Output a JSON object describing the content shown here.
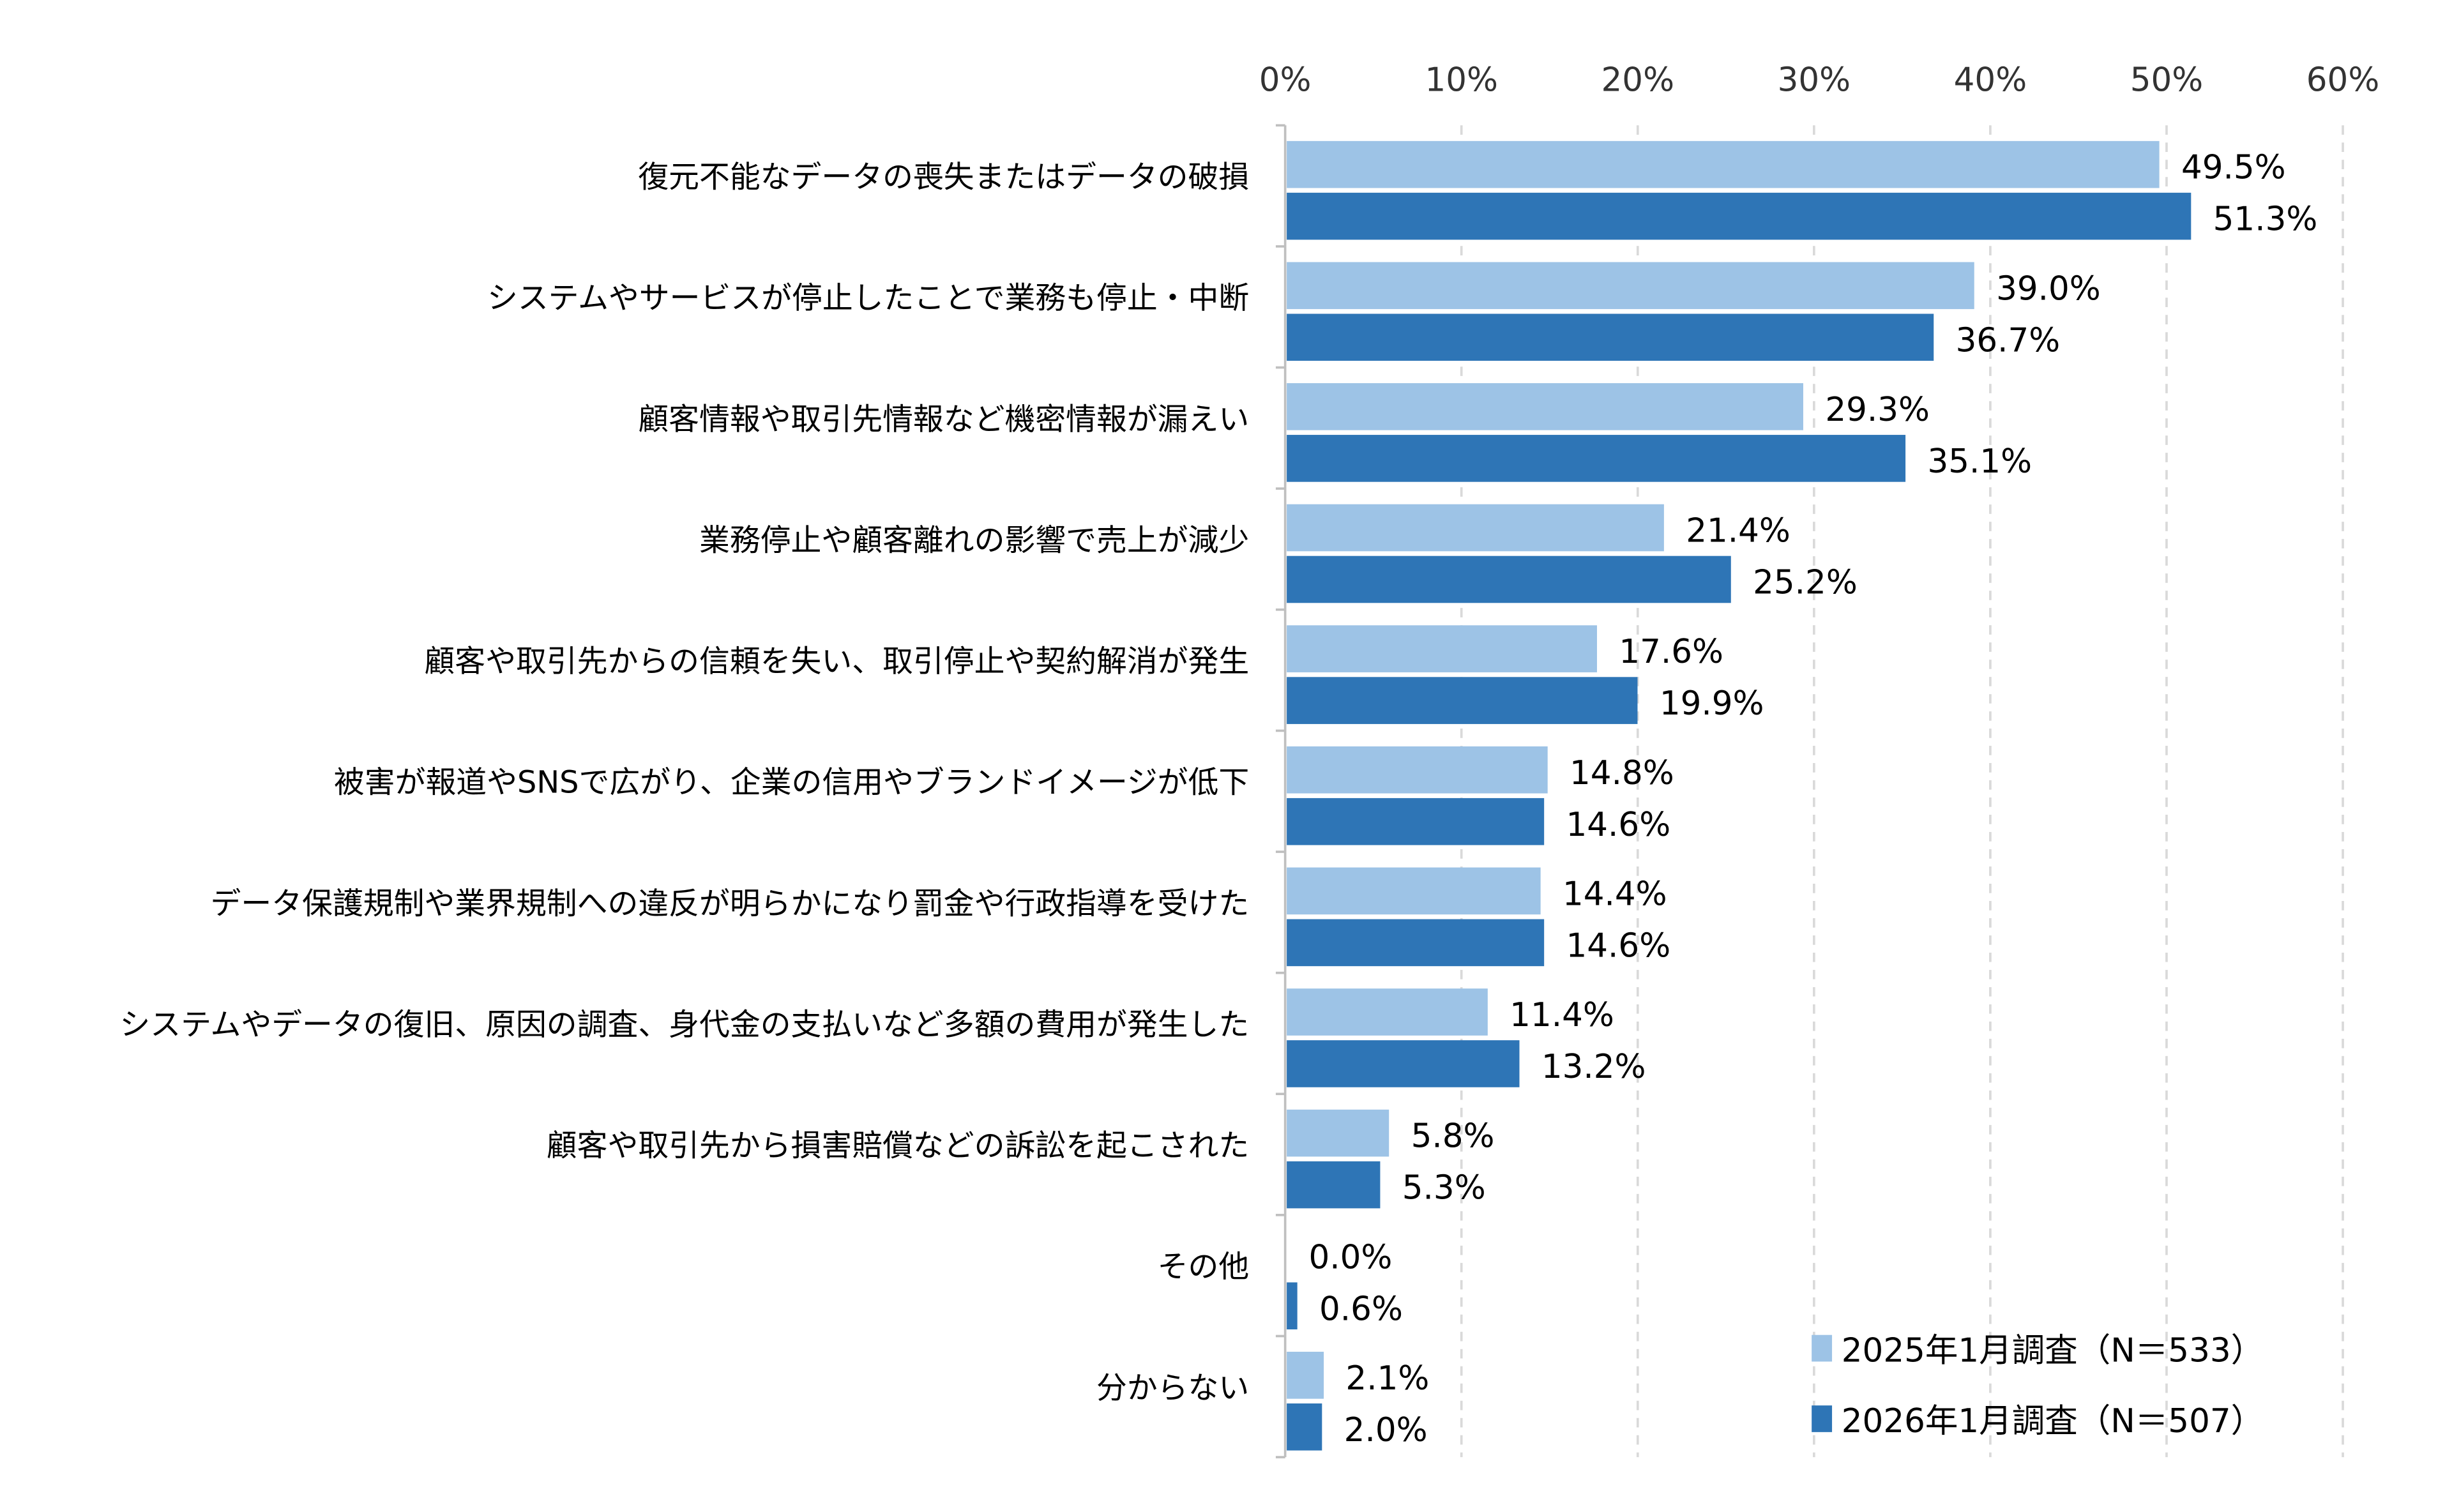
{
  "chart_data": {
    "type": "bar",
    "orientation": "horizontal",
    "title": "",
    "xlabel": "",
    "ylabel": "",
    "xlim": [
      0,
      60
    ],
    "x_ticks": [
      "0%",
      "10%",
      "20%",
      "30%",
      "40%",
      "50%",
      "60%"
    ],
    "grid": "vertical dashed",
    "legend_position": "bottom-right",
    "categories": [
      "復元不能なデータの喪失またはデータの破損",
      "システムやサービスが停止したことで業務も停止・中断",
      "顧客情報や取引先情報など機密情報が漏えい",
      "業務停止や顧客離れの影響で売上が減少",
      "顧客や取引先からの信頼を失い、取引停止や契約解消が発生",
      "被害が報道やSNSで広がり、企業の信用やブランドイメージが低下",
      "データ保護規制や業界規制への違反が明らかになり罰金や行政指導を受けた",
      "システムやデータの復旧、原因の調査、身代金の支払いなど多額の費用が発生した",
      "顧客や取引先から損害賠償などの訴訟を起こされた",
      "その他",
      "分からない"
    ],
    "series": [
      {
        "name": "2025年1月調査（N＝533）",
        "color": "#9dc3e6",
        "values": [
          49.5,
          39.0,
          29.3,
          21.4,
          17.6,
          14.8,
          14.4,
          11.4,
          5.8,
          0.0,
          2.1
        ],
        "labels": [
          "49.5%",
          "39.0%",
          "29.3%",
          "21.4%",
          "17.6%",
          "14.8%",
          "14.4%",
          "11.4%",
          "5.8%",
          "0.0%",
          "2.1%"
        ]
      },
      {
        "name": "2026年1月調査（N＝507）",
        "color": "#2e75b6",
        "values": [
          51.3,
          36.7,
          35.1,
          25.2,
          19.9,
          14.6,
          14.6,
          13.2,
          5.3,
          0.6,
          2.0
        ],
        "labels": [
          "51.3%",
          "36.7%",
          "35.1%",
          "25.2%",
          "19.9%",
          "14.6%",
          "14.6%",
          "13.2%",
          "5.3%",
          "0.6%",
          "2.0%"
        ]
      }
    ]
  }
}
